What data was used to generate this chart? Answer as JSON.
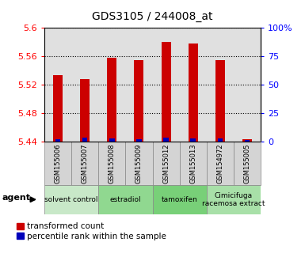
{
  "title": "GDS3105 / 244008_at",
  "samples": [
    "GSM155006",
    "GSM155007",
    "GSM155008",
    "GSM155009",
    "GSM155012",
    "GSM155013",
    "GSM154972",
    "GSM155005"
  ],
  "red_values": [
    5.534,
    5.528,
    5.558,
    5.555,
    5.58,
    5.578,
    5.555,
    5.443
  ],
  "blue_percentiles": [
    2.0,
    3.5,
    2.5,
    2.0,
    3.5,
    2.5,
    2.5,
    1.0
  ],
  "ymin": 5.44,
  "ymax": 5.6,
  "yticks": [
    5.44,
    5.48,
    5.52,
    5.56,
    5.6
  ],
  "ytick_labels": [
    "5.44",
    "5.48",
    "5.52",
    "5.56",
    "5.6"
  ],
  "right_yticks": [
    0,
    25,
    50,
    75,
    100
  ],
  "right_ytick_labels": [
    "0",
    "25",
    "50",
    "75",
    "100%"
  ],
  "groups": [
    {
      "label": "solvent control",
      "start": 0,
      "end": 2,
      "color": "#c8e8c8"
    },
    {
      "label": "estradiol",
      "start": 2,
      "end": 4,
      "color": "#90d890"
    },
    {
      "label": "tamoxifen",
      "start": 4,
      "end": 6,
      "color": "#78d078"
    },
    {
      "label": "Cimicifuga\nracemosa extract",
      "start": 6,
      "end": 8,
      "color": "#a8e0a8"
    }
  ],
  "red_color": "#cc0000",
  "blue_color": "#0000bb",
  "bar_width": 0.35,
  "base": 5.44,
  "agent_label": "agent",
  "legend_red": "transformed count",
  "legend_blue": "percentile rank within the sample",
  "col_bg": "#d0d0d0",
  "col_border": "#999999"
}
